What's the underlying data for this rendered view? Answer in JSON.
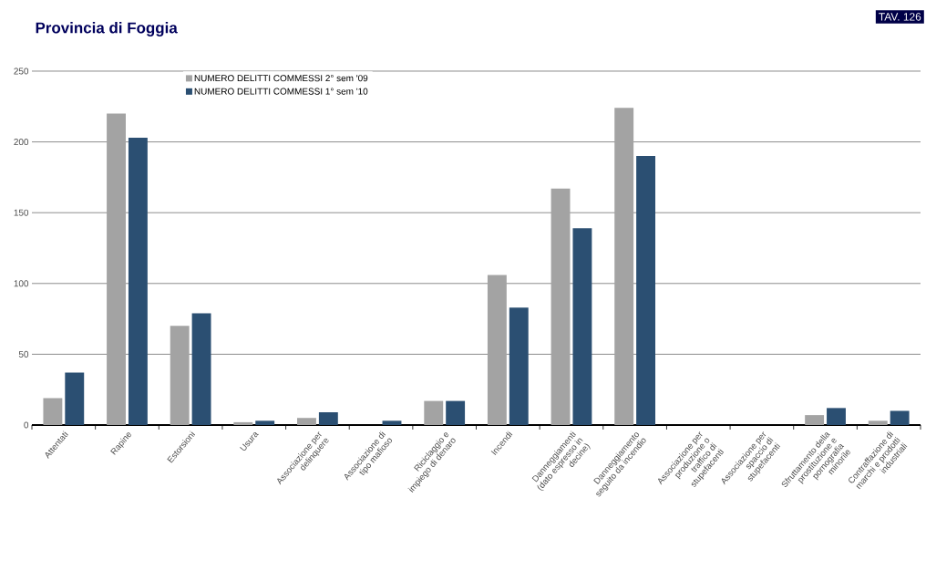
{
  "chart_data": {
    "type": "bar",
    "title": "Provincia di Foggia",
    "annotations": [
      "TAV. 126"
    ],
    "categories": [
      "Attentati",
      "Rapine",
      "Estorsioni",
      "Usura",
      "Associazione per delinquere",
      "Associazione di tipo mafioso",
      "Riciclaggio e impiego di denaro",
      "Incendi",
      "Danneggiamenti (dato espresso in decine)",
      "Danneggiamento seguito da incendio",
      "Associazione per produzione o traffico di stupefacenti",
      "Associazione per spaccio di stupefacenti",
      "Sfruttamento della prostituzione e pornografia minorile",
      "Contraffazione di marchi e prodotti industriali"
    ],
    "series": [
      {
        "name": "NUMERO DELITTI COMMESSI 2° sem '09",
        "color": "#a3a3a3",
        "values": [
          19,
          220,
          70,
          2,
          5,
          0,
          17,
          106,
          167,
          224,
          0,
          0,
          7,
          3
        ]
      },
      {
        "name": "NUMERO DELITTI COMMESSI 1° sem '10",
        "color": "#2b4f72",
        "values": [
          37,
          203,
          79,
          3,
          9,
          3,
          17,
          83,
          139,
          190,
          0,
          0,
          12,
          10
        ]
      }
    ],
    "ylim": [
      0,
      250
    ],
    "yticks": [
      0,
      50,
      100,
      150,
      200,
      250
    ],
    "grid": "y",
    "legend": "top"
  }
}
